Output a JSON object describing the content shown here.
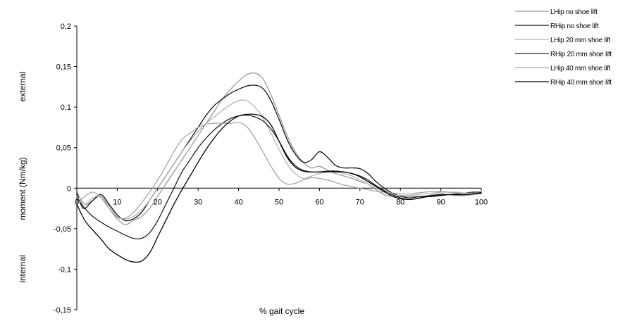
{
  "chart_data": {
    "type": "line",
    "title": "",
    "xlabel": "% gait cycle",
    "ylabel": "moment (Nm/kg)",
    "ylabel_top": "external",
    "ylabel_bottom": "internal",
    "xlim": [
      0,
      100
    ],
    "ylim": [
      -0.15,
      0.2
    ],
    "xticks": [
      0,
      10,
      20,
      30,
      40,
      50,
      60,
      70,
      80,
      90,
      100
    ],
    "xtick_labels": [
      "0",
      "10",
      "20",
      "30",
      "40",
      "50",
      "60",
      "70",
      "80",
      "90",
      "100"
    ],
    "yticks": [
      0.2,
      0.15,
      0.1,
      0.05,
      0,
      -0.05,
      -0.1,
      -0.15
    ],
    "ytick_labels": [
      "0,2",
      "0,15",
      "0,1",
      "0,05",
      "0",
      "-0,05",
      "-0,1",
      "-0,15"
    ],
    "grid": false,
    "legend_position": "top-right",
    "series": [
      {
        "name": "LHip no shoe lift",
        "color": "#999999",
        "x": [
          0,
          2,
          4,
          6,
          8,
          10,
          12,
          14,
          16,
          18,
          20,
          22,
          24,
          26,
          28,
          30,
          32,
          34,
          36,
          38,
          40,
          42,
          44,
          46,
          48,
          50,
          52,
          54,
          56,
          58,
          60,
          62,
          64,
          66,
          68,
          70,
          72,
          74,
          76,
          78,
          80,
          82,
          84,
          86,
          88,
          90,
          92,
          94,
          96,
          98,
          100
        ],
        "values": [
          -0.005,
          -0.02,
          -0.015,
          -0.01,
          -0.025,
          -0.038,
          -0.045,
          -0.04,
          -0.035,
          -0.025,
          -0.01,
          0.005,
          0.02,
          0.035,
          0.05,
          0.065,
          0.08,
          0.095,
          0.11,
          0.122,
          0.132,
          0.14,
          0.142,
          0.135,
          0.115,
          0.09,
          0.065,
          0.045,
          0.032,
          0.025,
          0.027,
          0.022,
          0.018,
          0.015,
          0.012,
          0.008,
          0.005,
          -0.002,
          -0.008,
          -0.01,
          -0.01,
          -0.01,
          -0.01,
          -0.01,
          -0.008,
          -0.007,
          -0.008,
          -0.009,
          -0.009,
          -0.008,
          -0.006
        ]
      },
      {
        "name": "RHip no shoe lift",
        "color": "#111111",
        "x": [
          0,
          1,
          2,
          4,
          6,
          8,
          10,
          12,
          14,
          16,
          18,
          20,
          22,
          24,
          26,
          28,
          30,
          32,
          34,
          36,
          38,
          40,
          42,
          44,
          46,
          48,
          50,
          52,
          54,
          56,
          58,
          60,
          62,
          64,
          66,
          68,
          70,
          72,
          74,
          76,
          78,
          80,
          82,
          84,
          86,
          88,
          90,
          92,
          94,
          96,
          98,
          100
        ],
        "values": [
          -0.005,
          -0.02,
          -0.025,
          -0.015,
          -0.008,
          -0.02,
          -0.033,
          -0.04,
          -0.038,
          -0.03,
          -0.015,
          0.0,
          0.015,
          0.03,
          0.045,
          0.06,
          0.075,
          0.09,
          0.102,
          0.11,
          0.117,
          0.122,
          0.126,
          0.127,
          0.123,
          0.108,
          0.085,
          0.06,
          0.042,
          0.032,
          0.035,
          0.045,
          0.038,
          0.028,
          0.025,
          0.025,
          0.024,
          0.018,
          0.008,
          0.0,
          -0.006,
          -0.01,
          -0.012,
          -0.011,
          -0.01,
          -0.009,
          -0.008,
          -0.008,
          -0.007,
          -0.006,
          -0.005,
          -0.005
        ]
      },
      {
        "name": "LHip 20 mm shoe lift",
        "color": "#b3b3b3",
        "x": [
          0,
          2,
          4,
          6,
          8,
          10,
          12,
          14,
          16,
          18,
          20,
          22,
          24,
          26,
          28,
          30,
          32,
          34,
          36,
          38,
          40,
          42,
          44,
          46,
          48,
          50,
          52,
          54,
          56,
          58,
          60,
          62,
          64,
          66,
          68,
          70,
          72,
          74,
          76,
          78,
          80,
          82,
          84,
          86,
          88,
          90,
          92,
          94,
          96,
          98,
          100
        ],
        "values": [
          -0.01,
          -0.02,
          -0.012,
          -0.01,
          -0.022,
          -0.035,
          -0.038,
          -0.035,
          -0.027,
          -0.015,
          0.0,
          0.015,
          0.03,
          0.045,
          0.058,
          0.07,
          0.08,
          0.088,
          0.096,
          0.103,
          0.108,
          0.108,
          0.1,
          0.087,
          0.068,
          0.048,
          0.03,
          0.018,
          0.012,
          0.015,
          0.018,
          0.02,
          0.02,
          0.018,
          0.015,
          0.01,
          0.005,
          0.0,
          -0.005,
          -0.008,
          -0.009,
          -0.009,
          -0.008,
          -0.007,
          -0.006,
          -0.005,
          -0.005,
          -0.005,
          -0.006,
          -0.006,
          -0.006
        ]
      },
      {
        "name": "RHip 20 mm shoe lift",
        "color": "#222222",
        "x": [
          0,
          2,
          4,
          6,
          8,
          10,
          12,
          14,
          16,
          18,
          20,
          22,
          24,
          26,
          28,
          30,
          32,
          34,
          36,
          38,
          40,
          42,
          44,
          46,
          48,
          50,
          52,
          54,
          56,
          58,
          60,
          62,
          64,
          66,
          68,
          70,
          72,
          74,
          76,
          78,
          80,
          82,
          84,
          86,
          88,
          90,
          92,
          94,
          96,
          98,
          100
        ],
        "values": [
          -0.012,
          -0.025,
          -0.035,
          -0.042,
          -0.048,
          -0.053,
          -0.058,
          -0.062,
          -0.062,
          -0.055,
          -0.04,
          -0.02,
          0.0,
          0.02,
          0.035,
          0.05,
          0.062,
          0.072,
          0.08,
          0.086,
          0.089,
          0.09,
          0.088,
          0.083,
          0.073,
          0.058,
          0.04,
          0.028,
          0.022,
          0.02,
          0.02,
          0.02,
          0.02,
          0.02,
          0.018,
          0.015,
          0.01,
          0.003,
          -0.003,
          -0.008,
          -0.012,
          -0.014,
          -0.013,
          -0.011,
          -0.01,
          -0.009,
          -0.008,
          -0.008,
          -0.008,
          -0.007,
          -0.006
        ]
      },
      {
        "name": "LHip 40 mm shoe lift",
        "color": "#a6a6a6",
        "x": [
          0,
          2,
          4,
          6,
          8,
          10,
          12,
          14,
          16,
          18,
          20,
          22,
          24,
          26,
          28,
          30,
          32,
          34,
          36,
          38,
          40,
          42,
          44,
          46,
          48,
          50,
          52,
          54,
          56,
          58,
          60,
          62,
          64,
          66,
          68,
          70,
          72,
          74,
          76,
          78,
          80,
          82,
          84,
          86,
          88,
          90,
          92,
          94,
          96,
          98,
          100
        ],
        "values": [
          -0.02,
          -0.01,
          -0.005,
          -0.012,
          -0.025,
          -0.036,
          -0.037,
          -0.03,
          -0.018,
          -0.005,
          0.01,
          0.027,
          0.045,
          0.06,
          0.068,
          0.075,
          0.079,
          0.08,
          0.08,
          0.08,
          0.081,
          0.076,
          0.062,
          0.045,
          0.027,
          0.012,
          0.005,
          0.006,
          0.01,
          0.013,
          0.012,
          0.01,
          0.007,
          0.004,
          0.002,
          0.0,
          -0.002,
          -0.004,
          -0.005,
          -0.006,
          -0.007,
          -0.007,
          -0.006,
          -0.005,
          -0.004,
          -0.004,
          -0.005,
          -0.006,
          -0.007,
          -0.007,
          -0.007
        ]
      },
      {
        "name": "RHip 40 mm shoe lift",
        "color": "#000000",
        "x": [
          0,
          2,
          4,
          6,
          8,
          10,
          12,
          14,
          16,
          18,
          20,
          22,
          24,
          26,
          28,
          30,
          32,
          34,
          36,
          38,
          40,
          42,
          44,
          46,
          48,
          50,
          52,
          54,
          56,
          58,
          60,
          62,
          64,
          66,
          68,
          70,
          72,
          74,
          76,
          78,
          80,
          82,
          84,
          86,
          88,
          90,
          92,
          94,
          96,
          98,
          100
        ],
        "values": [
          -0.02,
          -0.04,
          -0.052,
          -0.063,
          -0.075,
          -0.082,
          -0.088,
          -0.091,
          -0.09,
          -0.08,
          -0.06,
          -0.04,
          -0.02,
          -0.002,
          0.015,
          0.032,
          0.048,
          0.062,
          0.074,
          0.083,
          0.089,
          0.091,
          0.091,
          0.088,
          0.078,
          0.058,
          0.038,
          0.026,
          0.021,
          0.02,
          0.02,
          0.021,
          0.021,
          0.02,
          0.018,
          0.014,
          0.008,
          0.002,
          -0.004,
          -0.01,
          -0.013,
          -0.014,
          -0.013,
          -0.011,
          -0.01,
          -0.009,
          -0.008,
          -0.008,
          -0.008,
          -0.007,
          -0.006
        ]
      }
    ]
  }
}
